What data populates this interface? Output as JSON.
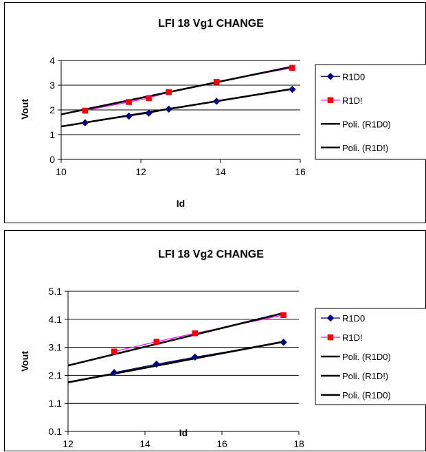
{
  "chart_data": [
    {
      "type": "line",
      "title": "LFI 18 Vg1 CHANGE",
      "xlabel": "Id",
      "ylabel": "Vout",
      "xlim": [
        10,
        16
      ],
      "ylim": [
        0,
        4
      ],
      "xticks": [
        "10",
        "12",
        "14",
        "16"
      ],
      "yticks": [
        "0",
        "1",
        "2",
        "3",
        "4"
      ],
      "grid": "horizontal",
      "legend_position": "right",
      "series": [
        {
          "name": "R1D0",
          "color": "#000080",
          "marker": "diamond",
          "x": [
            10.6,
            11.7,
            12.2,
            12.7,
            13.9,
            15.8
          ],
          "y": [
            1.48,
            1.75,
            1.87,
            2.03,
            2.35,
            2.83
          ]
        },
        {
          "name": "R1D!",
          "color": "#ff00ff",
          "marker": "square",
          "marker_color": "#ff0000",
          "x": [
            10.6,
            11.7,
            12.2,
            12.7,
            13.9,
            15.8
          ],
          "y": [
            1.97,
            2.32,
            2.48,
            2.72,
            3.13,
            3.7
          ]
        }
      ],
      "trendlines": [
        {
          "name": "Poli. (R1D0)",
          "color": "#000000",
          "x": [
            10,
            15.8
          ],
          "y": [
            1.33,
            2.85
          ]
        },
        {
          "name": "Poli. (R1D!)",
          "color": "#000000",
          "x": [
            10,
            15.8
          ],
          "y": [
            1.82,
            3.75
          ]
        }
      ]
    },
    {
      "type": "line",
      "title": "LFI 18 Vg2 CHANGE",
      "xlabel": "Id",
      "ylabel": "Vout",
      "xlim": [
        12,
        18
      ],
      "ylim": [
        0.1,
        5.1
      ],
      "xticks": [
        "12",
        "14",
        "16",
        "18"
      ],
      "yticks": [
        "0.1",
        "1.1",
        "2.1",
        "3.1",
        "4.1",
        "5.1"
      ],
      "grid": "horizontal",
      "legend_position": "right",
      "series": [
        {
          "name": "R1D0",
          "color": "#000080",
          "marker": "diamond",
          "x": [
            13.2,
            14.3,
            15.3,
            17.6
          ],
          "y": [
            2.2,
            2.5,
            2.75,
            3.28
          ]
        },
        {
          "name": "R1D!",
          "color": "#ff00ff",
          "marker": "square",
          "marker_color": "#ff0000",
          "x": [
            13.2,
            14.3,
            15.3,
            17.6
          ],
          "y": [
            2.95,
            3.3,
            3.6,
            4.25
          ]
        }
      ],
      "trendlines": [
        {
          "name": "Poli. (R1D0)",
          "color": "#000000",
          "x": [
            12,
            17.6
          ],
          "y": [
            1.85,
            3.3
          ]
        },
        {
          "name": "Poli. (R1D!)",
          "color": "#000000",
          "x": [
            12,
            17.6
          ],
          "y": [
            2.45,
            4.32
          ]
        },
        {
          "name": "Poli. (R1D0)",
          "color": "#000000",
          "x": [
            12,
            17.6
          ],
          "y": [
            1.85,
            3.3
          ]
        }
      ]
    }
  ]
}
